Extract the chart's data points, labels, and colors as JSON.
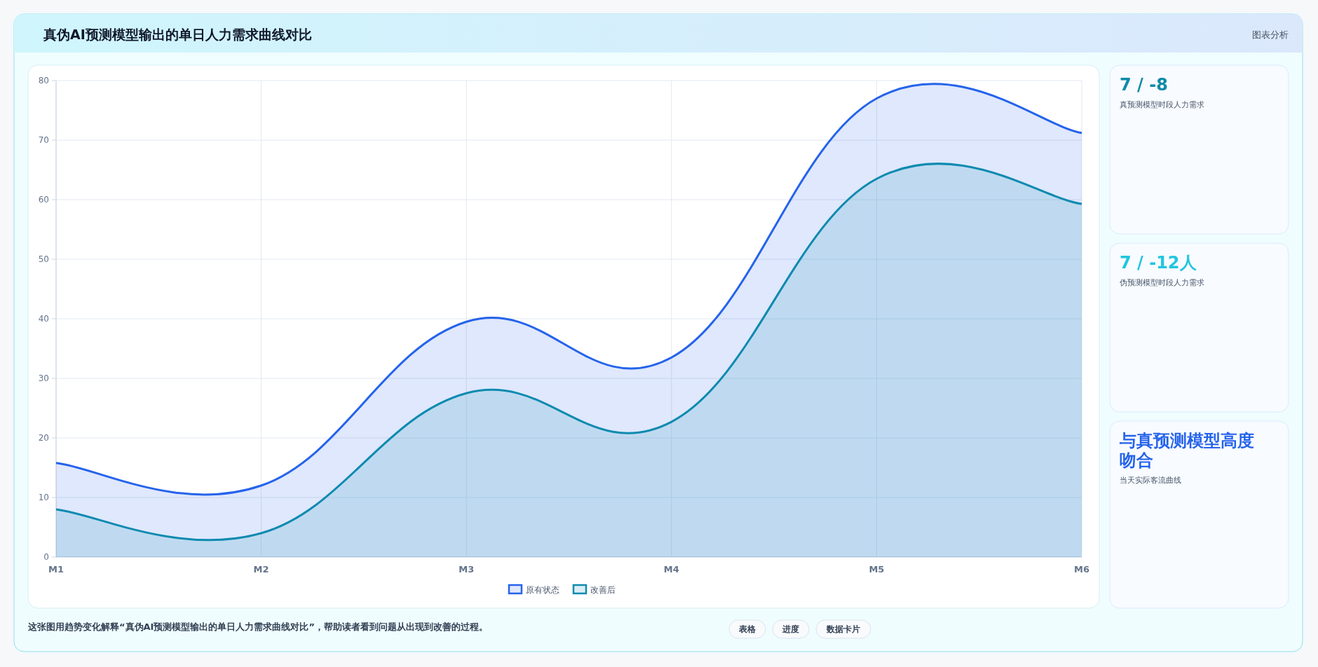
{
  "chart_data": [
    {
      "type": "area",
      "title": "真伪AI预测模型输出的单日人力需求曲线对比",
      "categories": [
        "M1",
        "M2",
        "M3",
        "M4",
        "M5",
        "M6"
      ],
      "series": [
        {
          "name": "原有状态",
          "color": "#2563eb",
          "values": [
            15.8,
            12,
            39.5,
            33.5,
            77,
            71.2
          ]
        },
        {
          "name": "改善后",
          "color": "#0e8ab0",
          "values": [
            8,
            4,
            27.5,
            22.7,
            63.5,
            59.3
          ]
        }
      ],
      "ylim": [
        0,
        80
      ],
      "yticks": [
        0,
        10,
        20,
        30,
        40,
        50,
        60,
        70,
        80
      ],
      "grid": true,
      "legend": "bottom",
      "annotations": [
        "图表分析",
        "这张图用趋势变化解释“真伪AI预测模型输出的单日人力需求曲线对比”，帮助读者看到问题从出现到改善的过程。",
        "表格",
        "进度",
        "数据卡片"
      ]
    },
    {
      "type": "other",
      "annotations": [
        "7 / -8",
        "真预测模型时段人力需求",
        "7 / -12人",
        "伪预测模型时段人力需求",
        "与真预测模型高度吻合",
        "当天实际客流曲线"
      ]
    }
  ]
}
